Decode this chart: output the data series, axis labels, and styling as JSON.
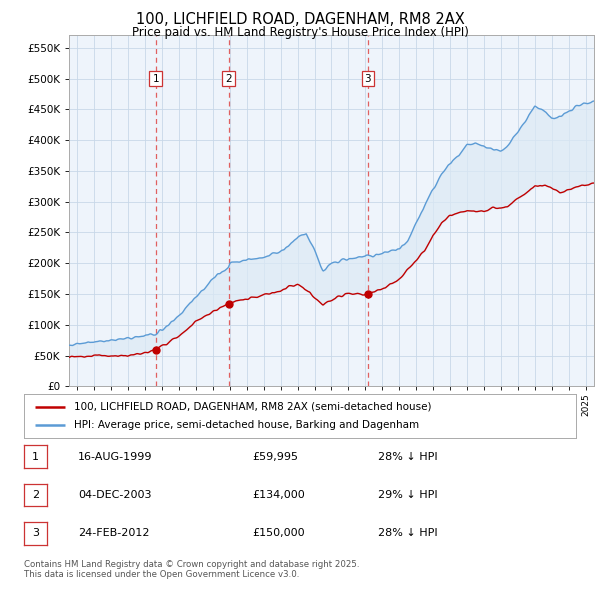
{
  "title": "100, LICHFIELD ROAD, DAGENHAM, RM8 2AX",
  "subtitle": "Price paid vs. HM Land Registry's House Price Index (HPI)",
  "ytick_values": [
    0,
    50000,
    100000,
    150000,
    200000,
    250000,
    300000,
    350000,
    400000,
    450000,
    500000,
    550000
  ],
  "ylim": [
    0,
    570000
  ],
  "xlim_start": 1994.5,
  "xlim_end": 2025.5,
  "sale_dates": [
    1999.62,
    2003.92,
    2012.15
  ],
  "sale_prices": [
    59995,
    134000,
    150000
  ],
  "sale_labels": [
    "1",
    "2",
    "3"
  ],
  "hpi_color": "#5b9bd5",
  "hpi_fill_color": "#dce9f5",
  "price_color": "#c00000",
  "vline_color": "#e06060",
  "legend_entries": [
    "100, LICHFIELD ROAD, DAGENHAM, RM8 2AX (semi-detached house)",
    "HPI: Average price, semi-detached house, Barking and Dagenham"
  ],
  "table_rows": [
    [
      "1",
      "16-AUG-1999",
      "£59,995",
      "28% ↓ HPI"
    ],
    [
      "2",
      "04-DEC-2003",
      "£134,000",
      "29% ↓ HPI"
    ],
    [
      "3",
      "24-FEB-2012",
      "£150,000",
      "28% ↓ HPI"
    ]
  ],
  "footer": "Contains HM Land Registry data © Crown copyright and database right 2025.\nThis data is licensed under the Open Government Licence v3.0.",
  "background_color": "#ffffff",
  "plot_bg_color": "#eef4fb",
  "grid_color": "#c8d8e8"
}
